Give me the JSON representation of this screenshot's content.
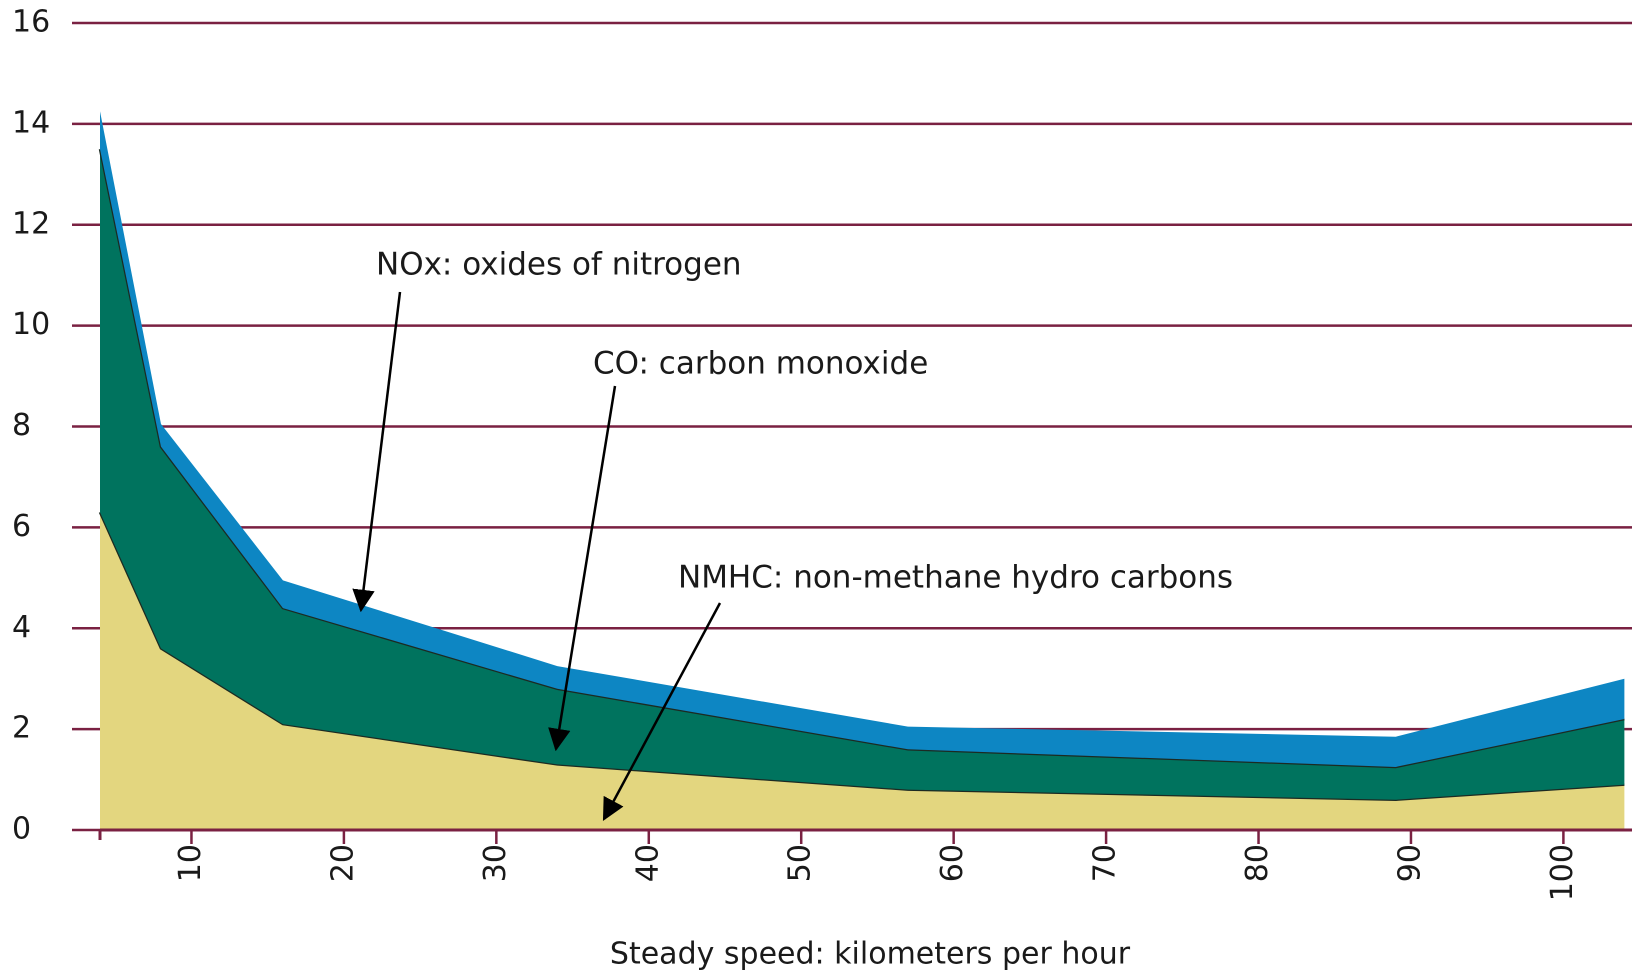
{
  "chart_data": {
    "type": "stacked_area",
    "xlabel": "Steady speed: kilometers per hour",
    "x": [
      4,
      8,
      16,
      34,
      57,
      89,
      104
    ],
    "series": [
      {
        "name": "NMHC: non-methane hydro carbons",
        "color": "#e3d67f",
        "values": [
          6.3,
          3.6,
          2.1,
          1.3,
          0.8,
          0.6,
          0.9
        ]
      },
      {
        "name": "CO: carbon monoxide",
        "color": "#00735e",
        "values": [
          7.2,
          4.0,
          2.3,
          1.5,
          0.8,
          0.65,
          1.3
        ]
      },
      {
        "name": "NOx: oxides of nitrogen",
        "color": "#0d86c3",
        "values": [
          0.75,
          0.45,
          0.55,
          0.45,
          0.45,
          0.6,
          0.8
        ]
      }
    ],
    "xlim": [
      4,
      104.5
    ],
    "xticks": [
      10,
      20,
      30,
      40,
      50,
      60,
      70,
      80,
      90,
      100
    ],
    "ylim": [
      0,
      16
    ],
    "yticks": [
      0,
      2,
      4,
      6,
      8,
      10,
      12,
      14,
      16
    ],
    "grid": true,
    "grid_color": "#7a2142"
  }
}
